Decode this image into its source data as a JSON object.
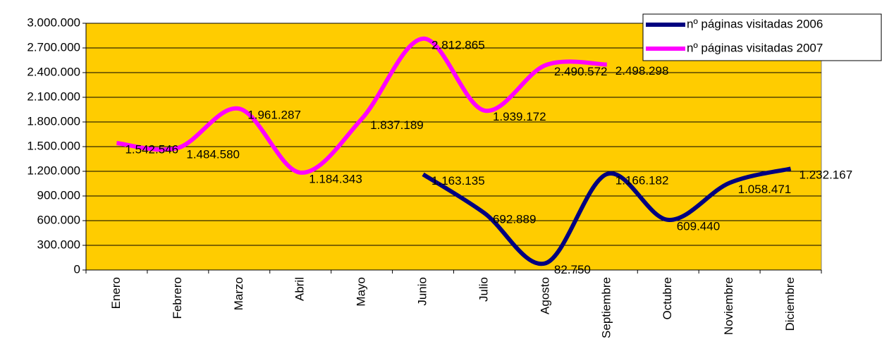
{
  "chart_data": {
    "type": "line",
    "categories": [
      "Enero",
      "Febrero",
      "Marzo",
      "Abril",
      "Mayo",
      "Junio",
      "Julio",
      "Agosto",
      "Septiembre",
      "Octubre",
      "Noviembre",
      "Diciembre"
    ],
    "series": [
      {
        "name": "nº páginas visitadas 2006",
        "color": "#000080",
        "values": [
          null,
          null,
          null,
          null,
          null,
          1163135,
          692889,
          82750,
          1166182,
          609440,
          1058471,
          1232167
        ],
        "value_labels": [
          null,
          null,
          null,
          null,
          null,
          "1.163.135",
          "692.889",
          "82.750",
          "1.166.182",
          "609.440",
          "1.058.471",
          "1.232.167"
        ]
      },
      {
        "name": "nº páginas visitadas 2007",
        "color": "#ff00ff",
        "values": [
          1542546,
          1484580,
          1961287,
          1184343,
          1837189,
          2812865,
          1939172,
          2490572,
          2498298,
          null,
          null,
          null
        ],
        "value_labels": [
          "1.542.546",
          "1.484.580",
          "1.961.287",
          "1.184.343",
          "1.837.189",
          "2.812.865",
          "1.939.172",
          "2.490.572",
          "2.498.298",
          null,
          null,
          null
        ]
      }
    ],
    "ylim": [
      0,
      3000000
    ],
    "yticks": [
      0,
      {
        "value": 300000,
        "label": "300.000"
      },
      {
        "value": 600000,
        "label": "600.000"
      },
      {
        "value": 900000,
        "label": "900.000"
      },
      {
        "value": 1200000,
        "label": "1.200.000"
      },
      {
        "value": 1500000,
        "label": "1.500.000"
      },
      {
        "value": 1800000,
        "label": "1.800.000"
      },
      {
        "value": 2100000,
        "label": "2.100.000"
      },
      {
        "value": 2400000,
        "label": "2.400.000"
      },
      {
        "value": 2700000,
        "label": "2.700.000"
      },
      {
        "value": 3000000,
        "label": "3.000.000"
      }
    ],
    "grid": true,
    "plot_background": "#ffcc00",
    "legend": "top-right"
  }
}
